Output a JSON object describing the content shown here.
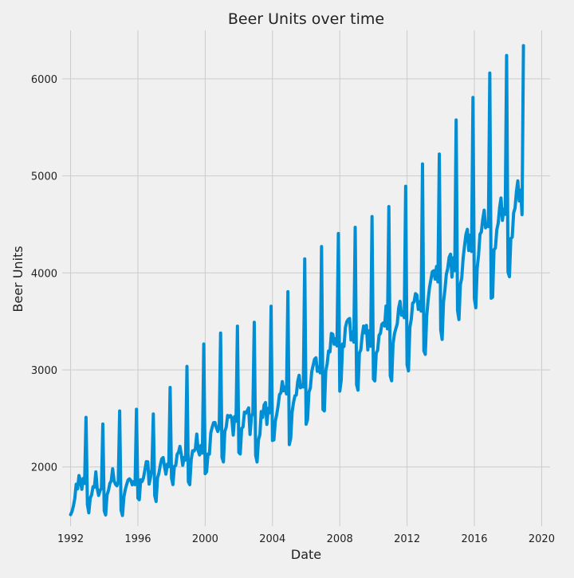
{
  "chart_data": {
    "type": "line",
    "title": "Beer Units over time",
    "xlabel": "Date",
    "ylabel": "Beer Units",
    "x_range": [
      1991.5,
      2020.5
    ],
    "ylim": [
      1390,
      6500
    ],
    "x_ticks": [
      1992,
      1996,
      2000,
      2004,
      2008,
      2012,
      2016,
      2020
    ],
    "x_tick_labels": [
      "1992",
      "1996",
      "2000",
      "2004",
      "2008",
      "2012",
      "2016",
      "2020"
    ],
    "y_ticks": [
      2000,
      3000,
      4000,
      5000,
      6000
    ],
    "y_tick_labels": [
      "2000",
      "3000",
      "4000",
      "5000",
      "6000"
    ],
    "grid": true,
    "x_start_year": 1992,
    "x_step": "monthly",
    "series": [
      {
        "color": "#008fd5",
        "values": [
          1509,
          1541,
          1597,
          1675,
          1822,
          1775,
          1912,
          1862,
          1770,
          1882,
          1831,
          2511,
          1614,
          1528,
          1678,
          1713,
          1796,
          1792,
          1950,
          1777,
          1707,
          1757,
          1782,
          2443,
          1548,
          1505,
          1714,
          1757,
          1830,
          1857,
          1981,
          1858,
          1823,
          1806,
          1845,
          2577,
          1555,
          1500,
          1689,
          1767,
          1820,
          1866,
          1878,
          1860,
          1816,
          1849,
          1818,
          2595,
          1679,
          1663,
          1869,
          1851,
          1889,
          1969,
          2054,
          2053,
          1824,
          1893,
          1980,
          2546,
          1706,
          1645,
          1887,
          1937,
          2020,
          2083,
          2097,
          2004,
          1926,
          2029,
          2003,
          2820,
          1884,
          1819,
          2007,
          2016,
          2130,
          2153,
          2212,
          2125,
          2017,
          2097,
          2072,
          3036,
          1848,
          1818,
          2072,
          2166,
          2164,
          2188,
          2339,
          2167,
          2124,
          2222,
          2143,
          3267,
          1931,
          1952,
          2134,
          2133,
          2352,
          2410,
          2457,
          2458,
          2404,
          2366,
          2411,
          3380,
          2098,
          2052,
          2368,
          2411,
          2531,
          2514,
          2530,
          2504,
          2329,
          2520,
          2472,
          3451,
          2150,
          2134,
          2396,
          2413,
          2565,
          2555,
          2580,
          2609,
          2336,
          2520,
          2555,
          3491,
          2121,
          2052,
          2279,
          2334,
          2571,
          2511,
          2638,
          2664,
          2439,
          2606,
          2559,
          3656,
          2273,
          2279,
          2470,
          2539,
          2630,
          2746,
          2765,
          2880,
          2785,
          2823,
          2753,
          3806,
          2231,
          2296,
          2566,
          2664,
          2733,
          2742,
          2880,
          2945,
          2816,
          2840,
          2825,
          4144,
          2441,
          2489,
          2771,
          2814,
          2982,
          3047,
          3111,
          3125,
          2986,
          3028,
          2970,
          4272,
          2592,
          2578,
          2989,
          3063,
          3195,
          3187,
          3376,
          3368,
          3265,
          3322,
          3248,
          4406,
          2782,
          2893,
          3267,
          3241,
          3436,
          3496,
          3520,
          3530,
          3308,
          3390,
          3287,
          4470,
          2848,
          2792,
          3176,
          3207,
          3356,
          3452,
          3383,
          3459,
          3207,
          3404,
          3245,
          4581,
          2906,
          2887,
          3174,
          3202,
          3356,
          3379,
          3470,
          3484,
          3453,
          3658,
          3423,
          4683,
          2940,
          2889,
          3268,
          3372,
          3426,
          3475,
          3637,
          3707,
          3565,
          3597,
          3539,
          4893,
          3052,
          2991,
          3441,
          3522,
          3689,
          3701,
          3786,
          3773,
          3624,
          3702,
          3606,
          5123,
          3196,
          3161,
          3557,
          3720,
          3851,
          3932,
          4012,
          4022,
          3936,
          4066,
          3907,
          5225,
          3413,
          3315,
          3701,
          3826,
          3984,
          4046,
          4160,
          4193,
          3957,
          4156,
          4023,
          5576,
          3615,
          3519,
          3876,
          3949,
          4155,
          4280,
          4397,
          4449,
          4231,
          4389,
          4221,
          5808,
          3736,
          3641,
          4049,
          4185,
          4398,
          4423,
          4555,
          4646,
          4465,
          4499,
          4478,
          6059,
          3739,
          3750,
          4239,
          4256,
          4444,
          4513,
          4671,
          4772,
          4542,
          4658,
          4604,
          6240,
          4008,
          3961,
          4355,
          4368,
          4618,
          4667,
          4837,
          4948,
          4742,
          4853,
          4600,
          6342
        ]
      }
    ]
  }
}
